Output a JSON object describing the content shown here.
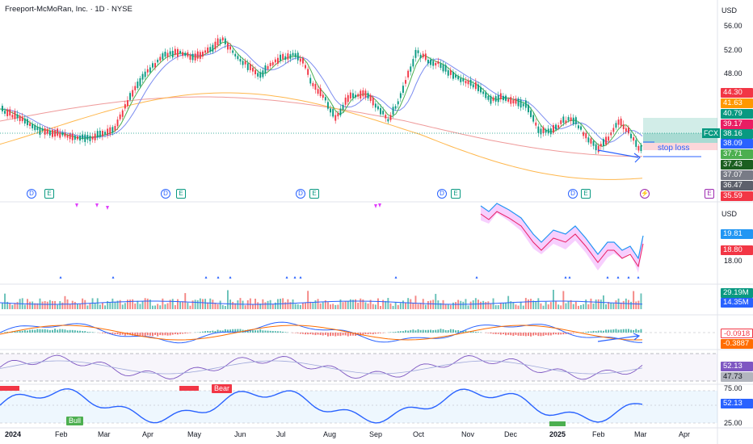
{
  "header": {
    "title": "Freeport-McMoRan, Inc. · 1D · NYSE",
    "currency": "USD",
    "currency_lower": "USD"
  },
  "price_axis": [
    "56.00",
    "52.00",
    "48.00"
  ],
  "price_tags": [
    {
      "label": "44.30",
      "color": "#f23645"
    },
    {
      "label": "41.63",
      "color": "#ff9800"
    },
    {
      "label": "40.79",
      "color": "#089981"
    },
    {
      "label": "39.17",
      "color": "#e91e63"
    },
    {
      "label": "38.16",
      "color": "#089981"
    },
    {
      "label": "38.09",
      "color": "#2962ff"
    },
    {
      "label": "37.71",
      "color": "#4caf50"
    },
    {
      "label": "37.43",
      "color": "#1b5e20"
    },
    {
      "label": "37.07",
      "color": "#787b86"
    },
    {
      "label": "36.47",
      "color": "#5d606b"
    },
    {
      "label": "35.59",
      "color": "#f23645"
    }
  ],
  "symbol_tag": "FCX",
  "stop_loss_label": "stop loss",
  "events": {
    "dividend": "D",
    "earnings": "E"
  },
  "lower_axis": {
    "top_tag": "19.81",
    "mid_tag": "18.80",
    "tick": "18.00"
  },
  "volume_tags": [
    "29.19M",
    "14.35M"
  ],
  "macd_tags": [
    "-0.0918",
    "-0.3887"
  ],
  "rsi_tags": [
    "52.13",
    "47.73"
  ],
  "osc": {
    "tick_top": "75.00",
    "tick_bottom": "25.00",
    "tag": "52.13",
    "bull_label": "Bull",
    "bear_label": "Bear"
  },
  "time_axis": [
    "2024",
    "Feb",
    "Mar",
    "Apr",
    "May",
    "Jun",
    "Jul",
    "Aug",
    "Sep",
    "Oct",
    "Nov",
    "Dec",
    "2025",
    "Feb",
    "Mar",
    "Apr"
  ],
  "colors": {
    "up": "#089981",
    "down": "#f23645",
    "ma_blue": "#7b8cf0",
    "ma_orange": "#ffb74d",
    "ma_red": "#ef9a9a",
    "ma_green": "#4caf50",
    "osc_blue": "#2962ff"
  }
}
